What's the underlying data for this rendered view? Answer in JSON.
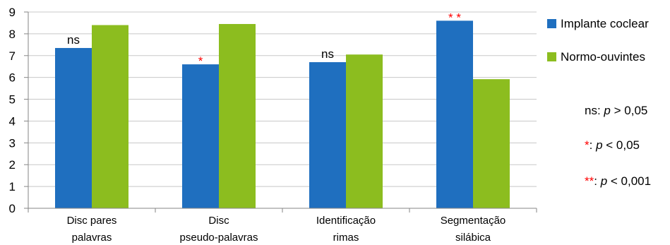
{
  "chart_data": {
    "type": "bar",
    "categories": [
      [
        "Disc pares",
        "palavras"
      ],
      [
        "Disc",
        "pseudo-palavras"
      ],
      [
        "Identificação",
        "rimas"
      ],
      [
        "Segmentação",
        "silábica"
      ]
    ],
    "series": [
      {
        "name": "Implante coclear",
        "color": "#1f6fbf",
        "values": [
          7.35,
          6.6,
          6.7,
          8.6
        ]
      },
      {
        "name": "Normo-ouvintes",
        "color": "#8cbd1f",
        "values": [
          8.4,
          8.45,
          7.05,
          5.92
        ]
      }
    ],
    "significance": [
      {
        "label": "ns",
        "color": "#000000"
      },
      {
        "label": "*",
        "color": "#ff0000"
      },
      {
        "label": "ns",
        "color": "#000000"
      },
      {
        "label": "* *",
        "color": "#ff0000"
      }
    ],
    "ylim": [
      0,
      9
    ],
    "yticks": [
      "0",
      "1",
      "2",
      "3",
      "4",
      "5",
      "6",
      "7",
      "8",
      "9"
    ],
    "grid": true,
    "legend": "right",
    "title": "",
    "xlabel": "",
    "ylabel": ""
  },
  "notes": [
    {
      "prefix": "ns",
      "prefix_color": "#000000",
      "sep": ": ",
      "p": "p",
      "rest": " > 0,05"
    },
    {
      "prefix": "*",
      "prefix_color": "#ff0000",
      "sep": ": ",
      "p": "p",
      "rest": " < 0,05"
    },
    {
      "prefix": "**",
      "prefix_color": "#ff0000",
      "sep": ": ",
      "p": "p",
      "rest": " < 0,001"
    }
  ]
}
